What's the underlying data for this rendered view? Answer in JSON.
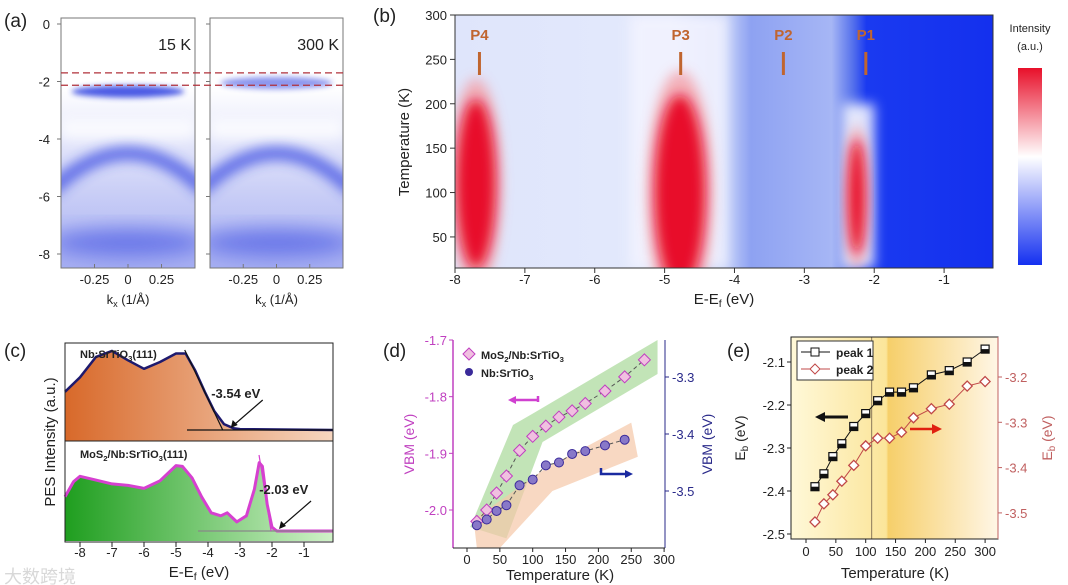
{
  "panel_labels": [
    "(a)",
    "(b)",
    "(c)",
    "(d)",
    "(e)"
  ],
  "watermark": "大数跨境",
  "chart_data": [
    {
      "id": "a",
      "type": "heatmap",
      "title": "",
      "panels": [
        "15 K",
        "300 K"
      ],
      "xlabel": "k_x (1/Å)",
      "xlabel_main": "k",
      "xlabel_sub": "x",
      "xlabel_rest": " (1/Å)",
      "xlim": [
        -0.5,
        0.5
      ],
      "xticks": [
        -0.25,
        0,
        0.25
      ],
      "xtick_labels": [
        "-0.25",
        "0",
        "0.25"
      ],
      "ylim": [
        -8.5,
        0.3
      ],
      "yticks": [
        0,
        -2,
        -4,
        -6,
        -8
      ],
      "ytick_labels": [
        "0",
        "-2",
        "-4",
        "-6",
        "-8"
      ],
      "reference_lines_eV": [
        -1.7,
        -2.13
      ],
      "colors": {
        "band": "#2a3de0",
        "reference": "#b0303a"
      }
    },
    {
      "id": "b",
      "type": "heatmap",
      "xlabel": "E-E_f (eV)",
      "xlabel_main": "E-E",
      "xlabel_sub": "f",
      "xlabel_rest": " (eV)",
      "ylabel": "Temperature (K)",
      "xlim": [
        -8,
        -0.3
      ],
      "ylim": [
        15,
        300
      ],
      "xticks": [
        -8,
        -7,
        -6,
        -5,
        -4,
        -3,
        -2,
        -1
      ],
      "xtick_labels": [
        "-8",
        "-7",
        "-6",
        "-5",
        "-4",
        "-3",
        "-2",
        "-1"
      ],
      "yticks": [
        50,
        100,
        150,
        200,
        250,
        300
      ],
      "ytick_labels": [
        "50",
        "100",
        "150",
        "200",
        "250",
        "300"
      ],
      "peaks": [
        {
          "label": "P4",
          "energy": -7.65
        },
        {
          "label": "P3",
          "energy": -4.77
        },
        {
          "label": "P2",
          "energy": -3.3
        },
        {
          "label": "P1",
          "energy": -2.12
        }
      ],
      "hotspots": [
        {
          "energy": -7.7,
          "temperature": 110,
          "e_width": 0.28,
          "t_height": 95
        },
        {
          "energy": -4.78,
          "temperature": 100,
          "e_width": 0.36,
          "t_height": 110
        },
        {
          "energy": -2.25,
          "temperature": 95,
          "e_width": 0.12,
          "t_height": 65
        }
      ],
      "colorbar_title": [
        "Intensity",
        "(a.u.)"
      ],
      "colors": {
        "high": "#e8102a",
        "mid": "#ffffff",
        "low": "#1430f0",
        "label": "#c0652f"
      }
    },
    {
      "id": "c",
      "type": "area",
      "xlabel": "E-E_f (eV)",
      "xlabel_main": "E-E",
      "xlabel_sub": "f",
      "xlabel_rest": " (eV)",
      "ylabel": "PES Intensity (a.u.)",
      "xlim": [
        -8.47,
        -0.1
      ],
      "xticks": [
        -8,
        -7,
        -6,
        -5,
        -4,
        -3,
        -2,
        -1
      ],
      "xtick_labels": [
        "-8",
        "-7",
        "-6",
        "-5",
        "-4",
        "-3",
        "-2",
        "-1"
      ],
      "series": [
        {
          "name": "Nb:SrTiO3(111)",
          "name_main": "Nb:SrTiO",
          "name_sub": "3",
          "name_rest": "(111)",
          "annotation": "-3.54 eV",
          "vbm": -3.54,
          "color": "#1e1a6e",
          "fill": [
            "#d8692a",
            "#f3c9a8"
          ],
          "x": [
            -8.47,
            -8,
            -7.5,
            -7,
            -6.5,
            -6,
            -5.5,
            -5,
            -4.7,
            -4.4,
            -4.1,
            -3.8,
            -3.5,
            -3.2,
            -3,
            -0.1
          ],
          "y": [
            0.45,
            0.62,
            0.86,
            0.93,
            0.82,
            0.72,
            0.8,
            0.9,
            0.9,
            0.7,
            0.45,
            0.22,
            0.07,
            0.02,
            0.01,
            0.0
          ]
        },
        {
          "name": "MoS2/Nb:SrTiO3(111)",
          "name_main": "MoS",
          "name_sub": "2",
          "name_rest": "/Nb:SrTiO",
          "name_sub2": "3",
          "name_rest2": "(111)",
          "annotation": "-2.03 eV",
          "vbm": -2.03,
          "color": "#d640d0",
          "fill": [
            "#20a020",
            "#c8f0c0"
          ],
          "x": [
            -8.47,
            -8.2,
            -8,
            -7.6,
            -7,
            -6.5,
            -6,
            -5.5,
            -5,
            -4.8,
            -4.5,
            -4.2,
            -3.9,
            -3.6,
            -3.4,
            -3.1,
            -2.8,
            -2.55,
            -2.4,
            -2.3,
            -2.15,
            -2.0,
            -1.85,
            -0.1
          ],
          "y": [
            0.45,
            0.65,
            0.72,
            0.68,
            0.62,
            0.6,
            0.56,
            0.66,
            0.86,
            0.85,
            0.7,
            0.45,
            0.24,
            0.2,
            0.24,
            0.12,
            0.2,
            0.55,
            0.9,
            0.85,
            0.35,
            0.05,
            0.0,
            0.0
          ]
        }
      ]
    },
    {
      "id": "d",
      "type": "line",
      "xlabel": "Temperature (K)",
      "ylabel": "VBM (eV)",
      "y2label": "VBM (eV)",
      "xlim": [
        -10,
        300
      ],
      "ylim": [
        -2.05,
        -1.7
      ],
      "y2lim": [
        -3.6,
        -3.233
      ],
      "xticks": [
        0,
        50,
        100,
        150,
        200,
        250,
        300
      ],
      "xtick_labels": [
        "0",
        "50",
        "100",
        "150",
        "200",
        "250",
        "300"
      ],
      "yticks": [
        -1.7,
        -1.8,
        -1.9,
        -2.0
      ],
      "ytick_labels": [
        "-1.7",
        "-1.8",
        "-1.9",
        "-2.0"
      ],
      "y2ticks": [
        -3.3,
        -3.4,
        -3.5
      ],
      "y2tick_labels": [
        "-3.3",
        "-3.4",
        "-3.5"
      ],
      "legend_position": "top-left",
      "series": [
        {
          "name": "MoS2/Nb:SrTiO3",
          "name_main": "MoS",
          "name_sub": "2",
          "name_rest": "/Nb:SrTiO",
          "name_sub2": "3",
          "axis": "left",
          "marker": "diamond",
          "color": "#c040c0",
          "x": [
            15,
            30,
            45,
            60,
            80,
            100,
            120,
            140,
            160,
            180,
            210,
            240,
            270
          ],
          "y": [
            -2.02,
            -2.0,
            -1.97,
            -1.94,
            -1.895,
            -1.87,
            -1.852,
            -1.836,
            -1.825,
            -1.812,
            -1.79,
            -1.765,
            -1.735
          ]
        },
        {
          "name": "Nb:SrTiO3",
          "name_main": "Nb:SrTiO",
          "name_sub": "3",
          "name_rest": "",
          "axis": "right",
          "marker": "circle",
          "color": "#3a2a9a",
          "x": [
            15,
            30,
            45,
            60,
            80,
            100,
            120,
            140,
            160,
            180,
            210,
            240
          ],
          "y": [
            -3.56,
            -3.55,
            -3.535,
            -3.525,
            -3.49,
            -3.48,
            -3.455,
            -3.45,
            -3.435,
            -3.43,
            -3.42,
            -3.41
          ]
        }
      ],
      "colors": {
        "left_axis": "#c040c0",
        "right_axis": "#2a2a8a",
        "band1": "#a8d898",
        "band2": "#f5c8a8"
      }
    },
    {
      "id": "e",
      "type": "line",
      "xlabel": "Temperature (K)",
      "ylabel": "E_b (eV)",
      "ylabel_main": "E",
      "ylabel_sub": "b",
      "ylabel_rest": " (eV)",
      "xlim": [
        -25,
        325
      ],
      "ylim": [
        -2.51,
        -2.035
      ],
      "y2lim": [
        -3.57,
        -3.12
      ],
      "xticks": [
        0,
        50,
        100,
        150,
        200,
        250,
        300
      ],
      "xtick_labels": [
        "0",
        "50",
        "100",
        "150",
        "200",
        "250",
        "300"
      ],
      "yticks": [
        -2.1,
        -2.2,
        -2.3,
        -2.4,
        -2.5
      ],
      "ytick_labels": [
        "-2.1",
        "-2.2",
        "-2.3",
        "-2.4",
        "-2.5"
      ],
      "y2ticks": [
        -3.2,
        -3.3,
        -3.4,
        -3.5
      ],
      "y2tick_labels": [
        "-3.2",
        "-3.3",
        "-3.4",
        "-3.5"
      ],
      "divider_temperature": 110,
      "legend_position": "top-left",
      "series": [
        {
          "name": "peak 1",
          "axis": "left",
          "marker": "square-half",
          "color": "#111111",
          "x": [
            15,
            30,
            45,
            60,
            80,
            100,
            120,
            140,
            160,
            180,
            210,
            240,
            270,
            300
          ],
          "y": [
            -2.39,
            -2.36,
            -2.32,
            -2.29,
            -2.25,
            -2.22,
            -2.19,
            -2.17,
            -2.17,
            -2.16,
            -2.13,
            -2.12,
            -2.1,
            -2.07
          ]
        },
        {
          "name": "peak 2",
          "axis": "right",
          "marker": "diamond-open",
          "color": "#c04848",
          "x": [
            15,
            30,
            45,
            60,
            80,
            100,
            120,
            140,
            160,
            180,
            210,
            240,
            270,
            300
          ],
          "y": [
            -3.52,
            -3.48,
            -3.46,
            -3.43,
            -3.395,
            -3.352,
            -3.335,
            -3.335,
            -3.322,
            -3.29,
            -3.27,
            -3.26,
            -3.22,
            -3.21
          ]
        }
      ],
      "colors": {
        "bg_light": "#fff6d0",
        "bg_dark": "#f6d070",
        "right_axis": "#c06060",
        "arrow_left": "#111111",
        "arrow_right": "#e02010"
      }
    }
  ]
}
